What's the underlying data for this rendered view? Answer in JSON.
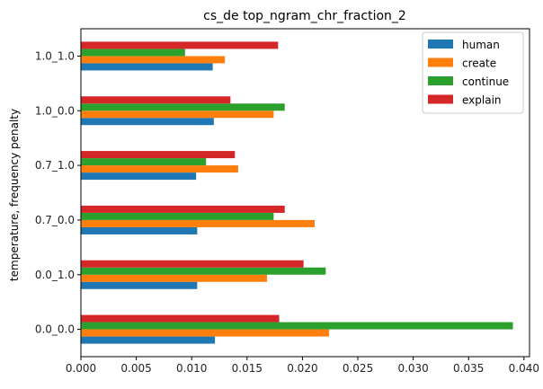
{
  "chart_data": {
    "type": "bar",
    "orientation": "horizontal",
    "title": "cs_de top_ngram_chr_fraction_2",
    "ylabel": "temperature, frequency penalty",
    "xlabel": "",
    "categories": [
      "0.0_0.0",
      "0.0_1.0",
      "0.7_0.0",
      "0.7_1.0",
      "1.0_0.0",
      "1.0_1.0"
    ],
    "xlim": [
      0.0,
      0.0405
    ],
    "xticks": [
      "0.000",
      "0.005",
      "0.010",
      "0.015",
      "0.020",
      "0.025",
      "0.030",
      "0.035",
      "0.040"
    ],
    "grid": false,
    "legend_position": "top-right",
    "series": [
      {
        "name": "human",
        "color": "#1f77b4",
        "values": [
          0.0121,
          0.0105,
          0.0105,
          0.0104,
          0.012,
          0.0119
        ]
      },
      {
        "name": "create",
        "color": "#ff7f0e",
        "values": [
          0.0224,
          0.0168,
          0.0211,
          0.0142,
          0.0174,
          0.013
        ]
      },
      {
        "name": "continue",
        "color": "#2ca02c",
        "values": [
          0.039,
          0.0221,
          0.0174,
          0.0113,
          0.0184,
          0.0094
        ]
      },
      {
        "name": "explain",
        "color": "#d62728",
        "values": [
          0.0179,
          0.0201,
          0.0184,
          0.0139,
          0.0135,
          0.0178
        ]
      }
    ]
  }
}
